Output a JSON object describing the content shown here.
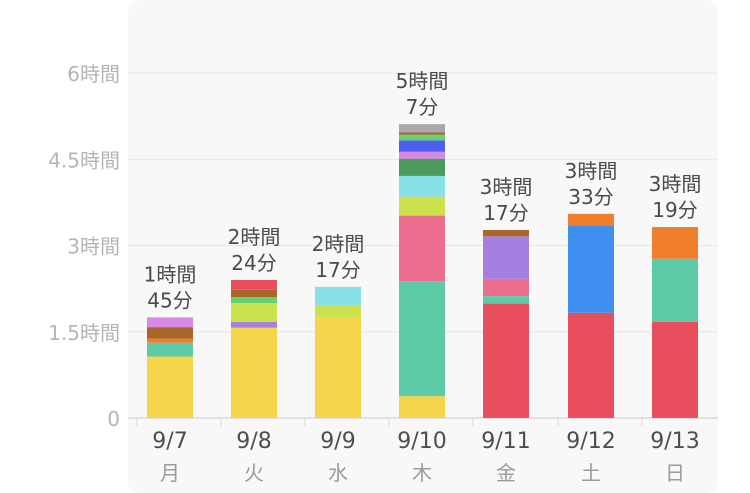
{
  "chart_data": {
    "type": "bar",
    "stacked": true,
    "title": "",
    "xlabel": "",
    "ylabel": "",
    "ylim": [
      0,
      6
    ],
    "grid": true,
    "legend": "none",
    "y_ticks": [
      {
        "value": 0,
        "label": "0"
      },
      {
        "value": 1.5,
        "label": "1.5時間"
      },
      {
        "value": 3,
        "label": "3時間"
      },
      {
        "value": 4.5,
        "label": "4.5時間"
      },
      {
        "value": 6,
        "label": "6時間"
      }
    ],
    "categories": [
      {
        "date": "9/7",
        "day": "月",
        "total": [
          "1時間",
          "45分"
        ]
      },
      {
        "date": "9/8",
        "day": "火",
        "total": [
          "2時間",
          "24分"
        ]
      },
      {
        "date": "9/9",
        "day": "水",
        "total": [
          "2時間",
          "17分"
        ]
      },
      {
        "date": "9/10",
        "day": "木",
        "total": [
          "5時間",
          "7分"
        ]
      },
      {
        "date": "9/11",
        "day": "金",
        "total": [
          "3時間",
          "17分"
        ]
      },
      {
        "date": "9/12",
        "day": "土",
        "total": [
          "3時間",
          "33分"
        ]
      },
      {
        "date": "9/13",
        "day": "日",
        "total": [
          "3時間",
          "19分"
        ]
      }
    ],
    "stacks": [
      [
        {
          "color": "#f7d54a",
          "value": 1.07
        },
        {
          "color": "#5dcaa8",
          "value": 0.24
        },
        {
          "color": "#f07e2c",
          "value": 0.07
        },
        {
          "color": "#a8662a",
          "value": 0.2
        },
        {
          "color": "#d68ae6",
          "value": 0.17
        }
      ],
      [
        {
          "color": "#f7d54a",
          "value": 1.57
        },
        {
          "color": "#a580e0",
          "value": 0.1
        },
        {
          "color": "#cbe24e",
          "value": 0.33
        },
        {
          "color": "#65d16e",
          "value": 0.1
        },
        {
          "color": "#a8662a",
          "value": 0.13
        },
        {
          "color": "#e94e5c",
          "value": 0.17
        }
      ],
      [
        {
          "color": "#f7d54a",
          "value": 1.75
        },
        {
          "color": "#cbe24e",
          "value": 0.2
        },
        {
          "color": "#88e0e8",
          "value": 0.33
        }
      ],
      [
        {
          "color": "#f7d54a",
          "value": 0.38
        },
        {
          "color": "#5dcaa8",
          "value": 2.0
        },
        {
          "color": "#ee6e90",
          "value": 1.14
        },
        {
          "color": "#cbe24e",
          "value": 0.33
        },
        {
          "color": "#88e0e8",
          "value": 0.36
        },
        {
          "color": "#4e9a5a",
          "value": 0.3
        },
        {
          "color": "#d68ae6",
          "value": 0.12
        },
        {
          "color": "#4e5ff0",
          "value": 0.2
        },
        {
          "color": "#65d16e",
          "value": 0.1
        },
        {
          "color": "#a8662a",
          "value": 0.04
        },
        {
          "color": "#a8a8ad",
          "value": 0.14
        }
      ],
      [
        {
          "color": "#e94e5c",
          "value": 1.99
        },
        {
          "color": "#5dcaa8",
          "value": 0.13
        },
        {
          "color": "#ee6e90",
          "value": 0.3
        },
        {
          "color": "#a580e0",
          "value": 0.74
        },
        {
          "color": "#a8662a",
          "value": 0.11
        }
      ],
      [
        {
          "color": "#e94e5c",
          "value": 1.83
        },
        {
          "color": "#3e8ff0",
          "value": 1.52
        },
        {
          "color": "#f07e2c",
          "value": 0.2
        }
      ],
      [
        {
          "color": "#e94e5c",
          "value": 1.67
        },
        {
          "color": "#5dcaa8",
          "value": 1.1
        },
        {
          "color": "#f07e2c",
          "value": 0.55
        }
      ]
    ]
  }
}
